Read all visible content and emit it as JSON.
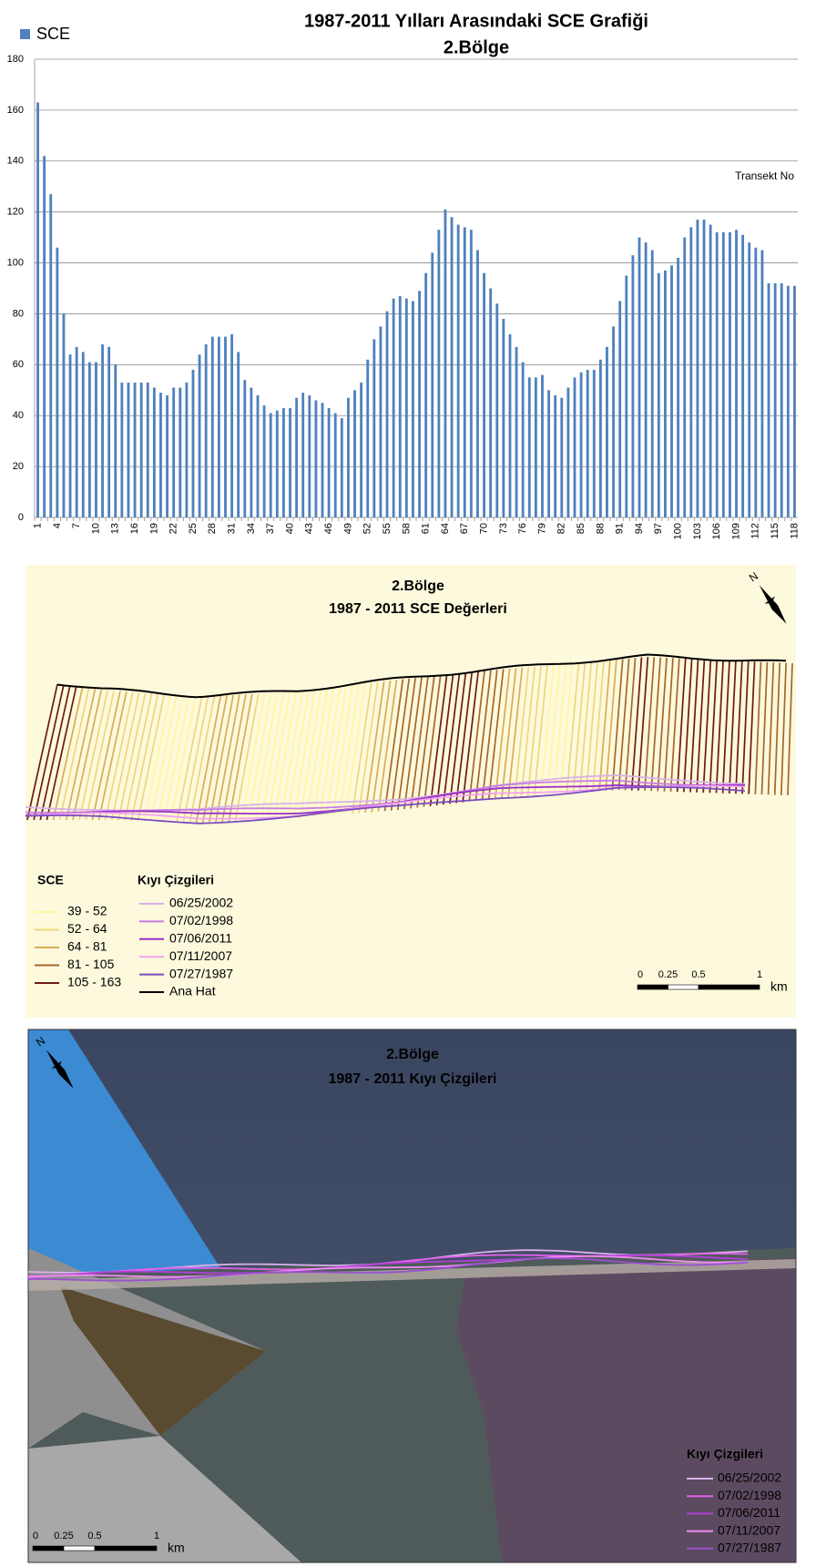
{
  "chart_data": {
    "type": "bar",
    "title": "1987-2011 Yılları Arasındaki SCE Grafiği",
    "subtitle": "2.Bölge",
    "xlabel": "Transekt No",
    "categories": [
      "1",
      null,
      null,
      "4",
      null,
      null,
      "7",
      null,
      null,
      "10",
      null,
      null,
      "13",
      null,
      null,
      "16",
      null,
      null,
      "19",
      null,
      null,
      "22",
      null,
      null,
      "25",
      null,
      null,
      "28",
      null,
      null,
      "31",
      null,
      null,
      "34",
      null,
      null,
      "37",
      null,
      null,
      "40",
      null,
      null,
      "43",
      null,
      null,
      "46",
      null,
      null,
      "49",
      null,
      null,
      "52",
      null,
      null,
      "55",
      null,
      null,
      "58",
      null,
      null,
      "61",
      null,
      null,
      "64",
      null,
      null,
      "67",
      null,
      null,
      "70",
      null,
      null,
      "73",
      null,
      null,
      "76",
      null,
      null,
      "79",
      null,
      null,
      "82",
      null,
      null,
      "85",
      null,
      null,
      "88",
      null,
      null,
      "91",
      null,
      null,
      "94",
      null,
      null,
      "97",
      null,
      null,
      "100",
      null,
      null,
      "103",
      null,
      null,
      "106",
      null,
      null,
      "109",
      null,
      null,
      "112",
      null,
      null,
      "115",
      null,
      null,
      "118"
    ],
    "series": [
      {
        "name": "SCE",
        "color": "#4f81bd",
        "values": [
          163,
          142,
          127,
          106,
          80,
          64,
          67,
          65,
          61,
          61,
          68,
          67,
          60,
          53,
          53,
          53,
          53,
          53,
          51,
          49,
          48,
          51,
          51,
          53,
          58,
          64,
          68,
          71,
          71,
          71,
          72,
          65,
          54,
          51,
          48,
          44,
          41,
          42,
          43,
          43,
          47,
          49,
          48,
          46,
          45,
          43,
          41,
          39,
          47,
          50,
          53,
          62,
          70,
          75,
          81,
          86,
          87,
          86,
          85,
          89,
          96,
          104,
          113,
          121,
          118,
          115,
          114,
          113,
          105,
          96,
          90,
          84,
          78,
          72,
          67,
          61,
          55,
          55,
          56,
          50,
          48,
          47,
          51,
          55,
          57,
          58,
          58,
          62,
          67,
          75,
          85,
          95,
          103,
          110,
          108,
          105,
          96,
          97,
          99,
          102,
          110,
          114,
          117,
          117,
          115,
          112,
          112,
          112,
          113,
          111,
          108,
          106,
          105,
          92,
          92,
          92,
          91,
          91
        ]
      }
    ],
    "ylim": [
      0,
      180
    ],
    "yticks": [
      0,
      20,
      40,
      60,
      80,
      100,
      120,
      140,
      160,
      180
    ],
    "grid": true,
    "legend": "top-left"
  },
  "map_sce": {
    "title": "2.Bölge",
    "subtitle": "1987 - 2011 SCE Değerleri",
    "north": "N",
    "legend_sce": {
      "title": "SCE",
      "classes": [
        {
          "label": "39 - 52",
          "color": "#fff6a0"
        },
        {
          "label": "52 - 64",
          "color": "#eed67c"
        },
        {
          "label": "64 - 81",
          "color": "#d8ac55"
        },
        {
          "label": "81 - 105",
          "color": "#a5672b"
        },
        {
          "label": "105 - 163",
          "color": "#6e1a12"
        }
      ]
    },
    "legend_shorelines": {
      "title": "Kıyı Çizgileri",
      "items": [
        {
          "label": "06/25/2002",
          "color": "#d8b2e8"
        },
        {
          "label": "07/02/1998",
          "color": "#c77de2"
        },
        {
          "label": "07/06/2011",
          "color": "#9a2fc8"
        },
        {
          "label": "07/11/2007",
          "color": "#f2a2f2"
        },
        {
          "label": "07/27/1987",
          "color": "#7a4cc2"
        },
        {
          "label": "Ana Hat",
          "color": "#000000"
        }
      ]
    },
    "scale": {
      "labels": [
        "0",
        "0.25",
        "0.5",
        "1"
      ],
      "unit": "km"
    }
  },
  "map_shoreline": {
    "title": "2.Bölge",
    "subtitle": "1987 - 2011 Kıyı Çizgileri",
    "north": "N",
    "legend": {
      "title": "Kıyı Çizgileri",
      "items": [
        {
          "label": "06/25/2002",
          "color": "#d8b2e8"
        },
        {
          "label": "07/02/1998",
          "color": "#e060e8"
        },
        {
          "label": "07/06/2011",
          "color": "#b040d8"
        },
        {
          "label": "07/11/2007",
          "color": "#f08cf0"
        },
        {
          "label": "07/27/1987",
          "color": "#9a50d0"
        }
      ]
    },
    "scale": {
      "labels": [
        "0",
        "0.25",
        "0.5",
        "1"
      ],
      "unit": "km"
    }
  }
}
